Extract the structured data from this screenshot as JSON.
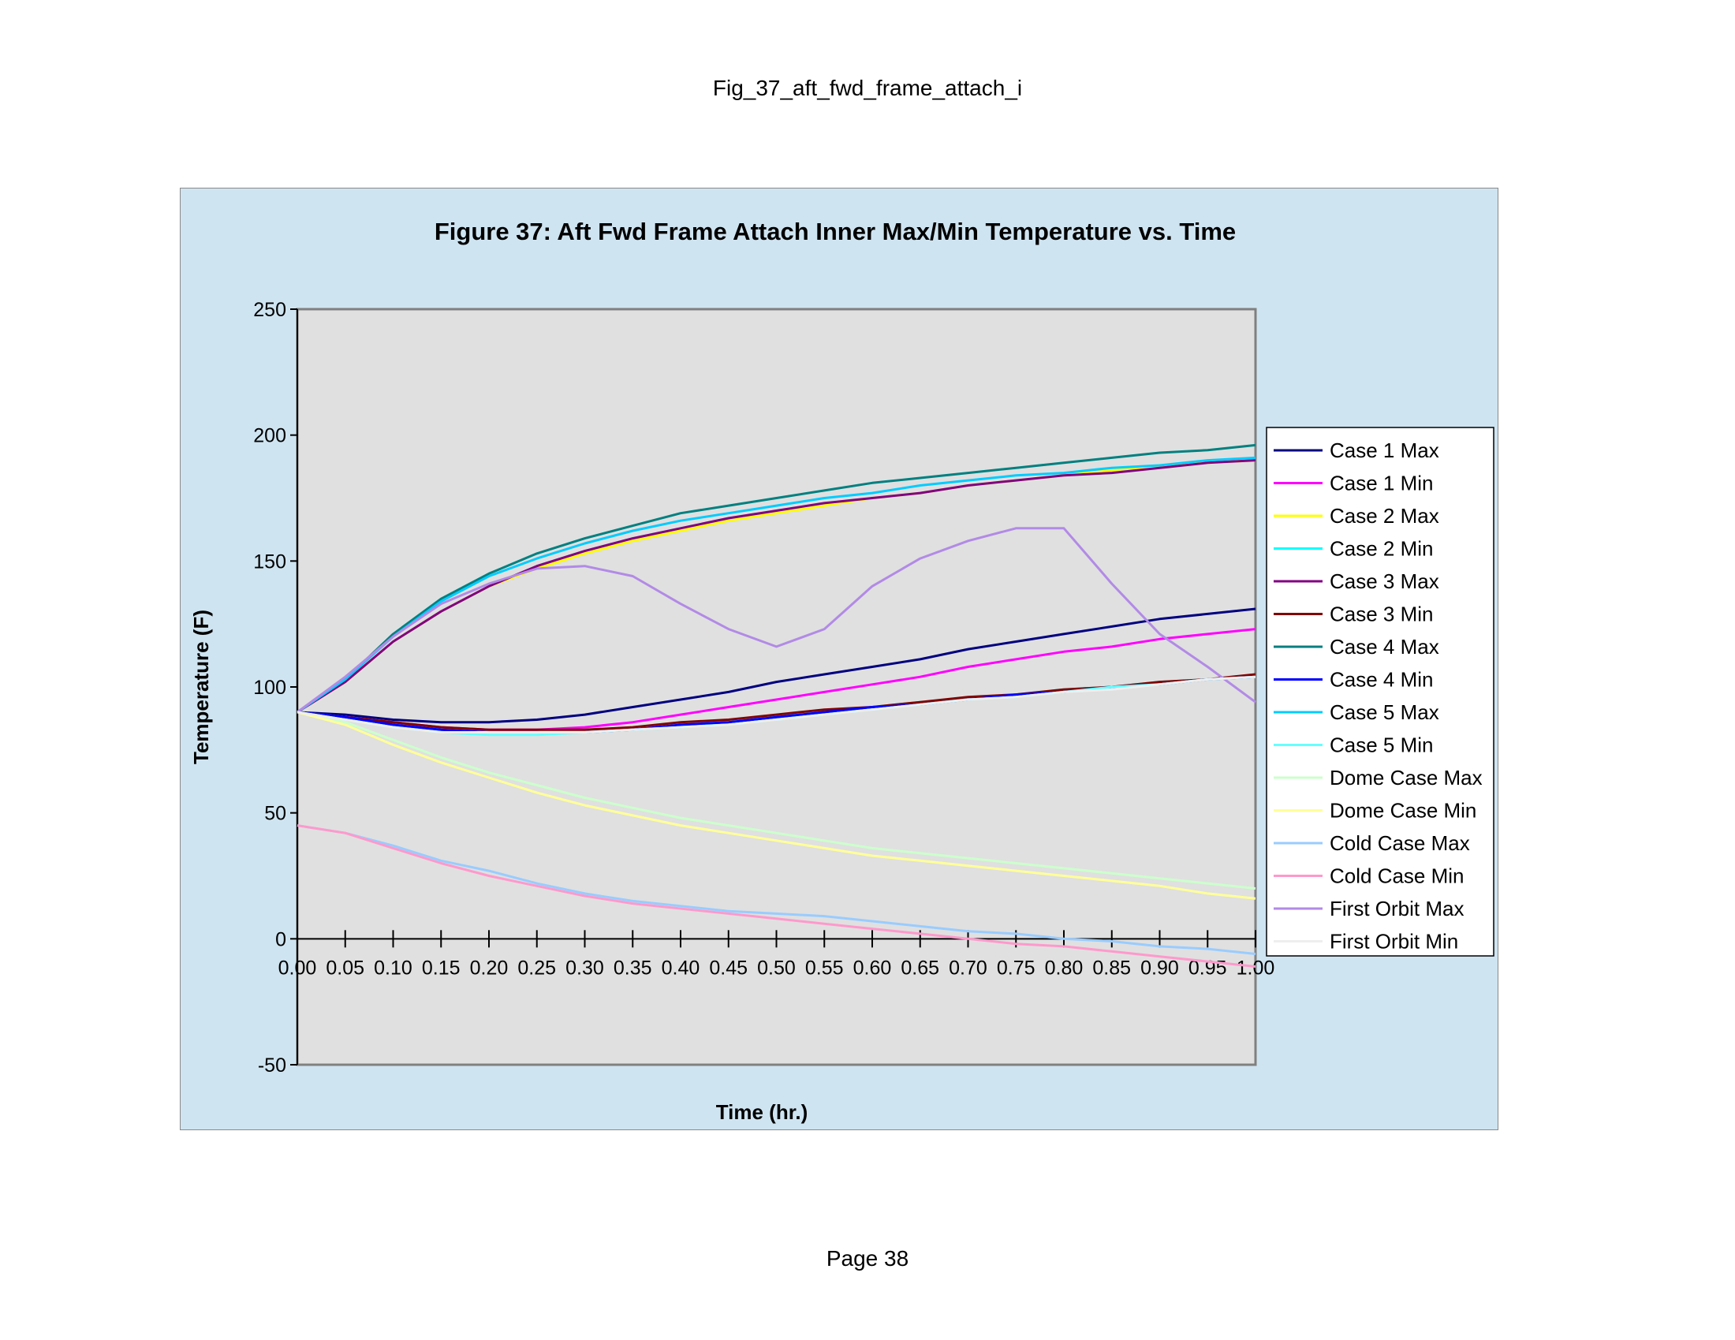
{
  "page": {
    "header": "Fig_37_aft_fwd_frame_attach_i",
    "footer": "Page 38"
  },
  "colors": {
    "chart_area_bg": "#cfe4f1",
    "plot_bg": "#e0e0e0"
  },
  "chart_data": {
    "type": "line",
    "title": "Figure 37: Aft Fwd Frame Attach Inner Max/Min Temperature vs. Time",
    "xlabel": "Time (hr.)",
    "ylabel": "Temperature (F)",
    "xlim": [
      0,
      1
    ],
    "ylim": [
      -50,
      250
    ],
    "x_ticks": [
      "0.00",
      "0.05",
      "0.10",
      "0.15",
      "0.20",
      "0.25",
      "0.30",
      "0.35",
      "0.40",
      "0.45",
      "0.50",
      "0.55",
      "0.60",
      "0.65",
      "0.70",
      "0.75",
      "0.80",
      "0.85",
      "0.90",
      "0.95",
      "1.00"
    ],
    "y_ticks": [
      "-50",
      "0",
      "50",
      "100",
      "150",
      "200",
      "250"
    ],
    "grid": false,
    "legend_position": "right",
    "x": [
      0.0,
      0.05,
      0.1,
      0.15,
      0.2,
      0.25,
      0.3,
      0.35,
      0.4,
      0.45,
      0.5,
      0.55,
      0.6,
      0.65,
      0.7,
      0.75,
      0.8,
      0.85,
      0.9,
      0.95,
      1.0
    ],
    "series": [
      {
        "name": "Case 1 Max",
        "color": "#000080",
        "values": [
          90,
          89,
          87,
          86,
          86,
          87,
          89,
          92,
          95,
          98,
          102,
          105,
          108,
          111,
          115,
          118,
          121,
          124,
          127,
          129,
          131
        ]
      },
      {
        "name": "Case 1 Min",
        "color": "#ff00ff",
        "values": [
          90,
          88,
          86,
          84,
          83,
          83,
          84,
          86,
          89,
          92,
          95,
          98,
          101,
          104,
          108,
          111,
          114,
          116,
          119,
          121,
          123
        ]
      },
      {
        "name": "Case 2 Max",
        "color": "#ffff00",
        "values": [
          90,
          102,
          118,
          130,
          140,
          147,
          153,
          158,
          162,
          166,
          169,
          172,
          175,
          177,
          180,
          182,
          184,
          186,
          188,
          189,
          190
        ]
      },
      {
        "name": "Case 2 Min",
        "color": "#00ffff",
        "values": [
          90,
          88,
          85,
          83,
          82,
          82,
          82,
          83,
          84,
          86,
          88,
          90,
          92,
          94,
          95,
          97,
          99,
          100,
          102,
          103,
          104
        ]
      },
      {
        "name": "Case 3 Max",
        "color": "#800080",
        "values": [
          90,
          102,
          118,
          130,
          140,
          148,
          154,
          159,
          163,
          167,
          170,
          173,
          175,
          177,
          180,
          182,
          184,
          185,
          187,
          189,
          190
        ]
      },
      {
        "name": "Case 3 Min",
        "color": "#800000",
        "values": [
          90,
          88,
          86,
          84,
          83,
          83,
          83,
          84,
          86,
          87,
          89,
          91,
          92,
          94,
          96,
          97,
          99,
          100,
          102,
          103,
          105
        ]
      },
      {
        "name": "Case 4 Max",
        "color": "#008080",
        "values": [
          90,
          103,
          121,
          135,
          145,
          153,
          159,
          164,
          169,
          172,
          175,
          178,
          181,
          183,
          185,
          187,
          189,
          191,
          193,
          194,
          196
        ]
      },
      {
        "name": "Case 4 Min",
        "color": "#0000ff",
        "values": [
          90,
          88,
          85,
          83,
          82,
          82,
          82,
          83,
          85,
          86,
          88,
          90,
          92,
          93,
          95,
          97,
          98,
          100,
          101,
          103,
          104
        ]
      },
      {
        "name": "Case 5 Max",
        "color": "#00ccff",
        "values": [
          90,
          103,
          120,
          134,
          144,
          151,
          157,
          162,
          166,
          169,
          172,
          175,
          177,
          180,
          182,
          184,
          185,
          187,
          188,
          190,
          191
        ]
      },
      {
        "name": "Case 5 Min",
        "color": "#66ffff",
        "values": [
          90,
          87,
          84,
          82,
          81,
          81,
          82,
          83,
          84,
          85,
          87,
          89,
          91,
          93,
          95,
          96,
          98,
          100,
          101,
          103,
          104
        ]
      },
      {
        "name": "Dome Case Max",
        "color": "#ccffcc",
        "values": [
          90,
          86,
          79,
          72,
          66,
          61,
          56,
          52,
          48,
          45,
          42,
          39,
          36,
          34,
          32,
          30,
          28,
          26,
          24,
          22,
          20
        ]
      },
      {
        "name": "Dome Case Min",
        "color": "#ffff99",
        "values": [
          90,
          85,
          77,
          70,
          64,
          58,
          53,
          49,
          45,
          42,
          39,
          36,
          33,
          31,
          29,
          27,
          25,
          23,
          21,
          18,
          16
        ]
      },
      {
        "name": "Cold Case Max",
        "color": "#99ccff",
        "values": [
          45,
          42,
          37,
          31,
          27,
          22,
          18,
          15,
          13,
          11,
          10,
          9,
          7,
          5,
          3,
          2,
          0,
          -1,
          -3,
          -4,
          -6
        ]
      },
      {
        "name": "Cold Case Min",
        "color": "#ff99cc",
        "values": [
          45,
          42,
          36,
          30,
          25,
          21,
          17,
          14,
          12,
          10,
          8,
          6,
          4,
          2,
          0,
          -2,
          -3,
          -5,
          -7,
          -9,
          -11
        ]
      },
      {
        "name": "First Orbit Max",
        "color": "#b28ae6",
        "values": [
          90,
          104,
          120,
          133,
          141,
          147,
          148,
          144,
          133,
          123,
          116,
          123,
          140,
          151,
          158,
          163,
          163,
          141,
          121,
          108,
          94
        ]
      },
      {
        "name": "First Orbit Min",
        "color": "#eeeeee",
        "values": [
          90,
          87,
          84,
          82,
          82,
          82,
          82,
          83,
          84,
          85,
          87,
          89,
          91,
          93,
          95,
          96,
          98,
          99,
          101,
          103,
          104
        ]
      }
    ]
  }
}
